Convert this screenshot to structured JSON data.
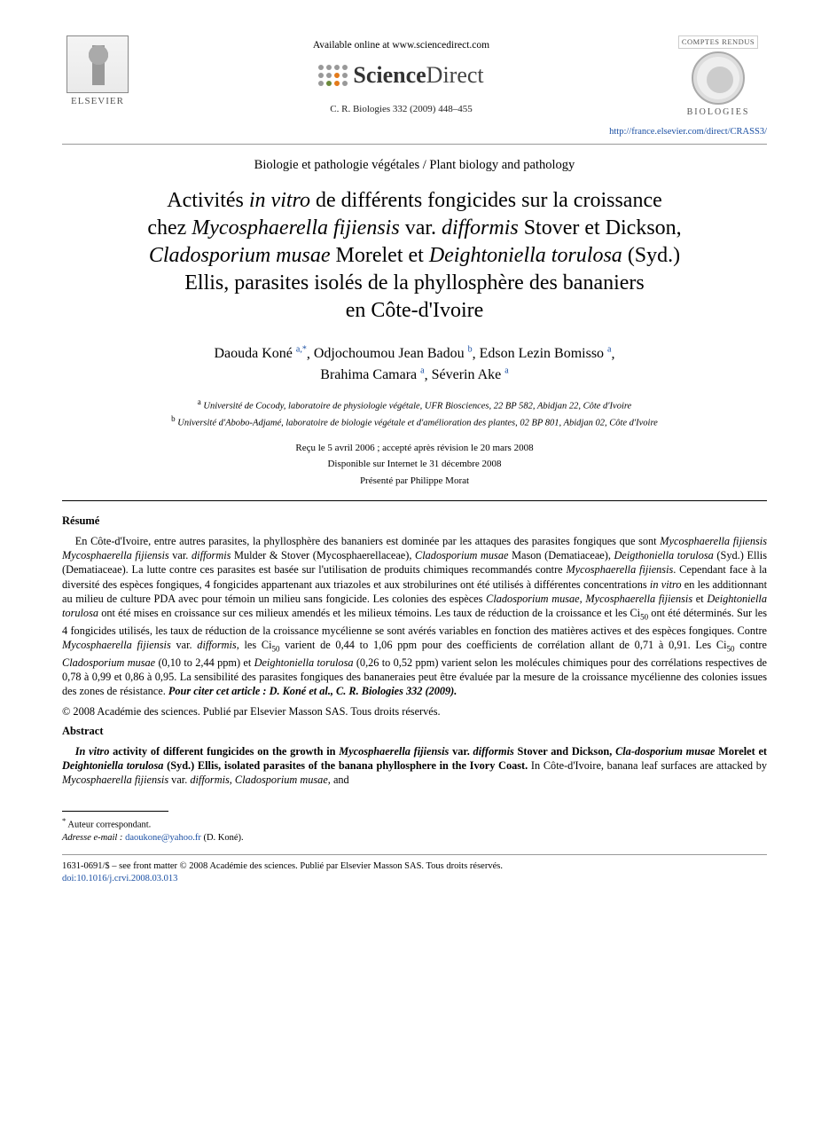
{
  "colors": {
    "link": "#1a4fa3",
    "text": "#000000",
    "background": "#ffffff",
    "rule": "#999999",
    "logo_orange": "#e37b1b",
    "logo_green": "#6a8a3a"
  },
  "typography": {
    "body_family": "Times New Roman",
    "title_size_pt": 18,
    "author_size_pt": 12,
    "body_size_pt": 9.5
  },
  "header": {
    "elsevier_label": "ELSEVIER",
    "available_line": "Available online at www.sciencedirect.com",
    "sd_brand_bold": "Science",
    "sd_brand_rest": "Direct",
    "citation_line": "C. R. Biologies 332 (2009) 448–455",
    "journal_top": "COMPTES RENDUS",
    "journal_bottom": "BIOLOGIES",
    "journal_url": "http://france.elsevier.com/direct/CRASS3/"
  },
  "section_name": "Biologie et pathologie végétales / Plant biology and pathology",
  "title": {
    "l1_a": "Activités ",
    "l1_b_ital": "in vitro",
    "l1_c": " de différents fongicides sur la croissance",
    "l2_a": "chez ",
    "l2_b_ital": "Mycosphaerella fijiensis",
    "l2_c": " var. ",
    "l2_d_ital": "difformis",
    "l2_e": " Stover et Dickson,",
    "l3_a_ital": "Cladosporium musae",
    "l3_b": " Morelet et ",
    "l3_c_ital": "Deightoniella torulosa",
    "l3_d": " (Syd.)",
    "l4": "Ellis, parasites isolés de la phyllosphère des bananiers",
    "l5": "en Côte-d'Ivoire"
  },
  "authors": [
    {
      "name": "Daouda Koné",
      "aff": "a,",
      "star": "*"
    },
    {
      "name": "Odjochoumou Jean Badou",
      "aff": "b",
      "star": ""
    },
    {
      "name": "Edson Lezin Bomisso",
      "aff": "a",
      "star": ""
    },
    {
      "name": "Brahima Camara",
      "aff": "a",
      "star": ""
    },
    {
      "name": "Séverin Ake",
      "aff": "a",
      "star": ""
    }
  ],
  "affiliations": {
    "a": "Université de Cocody, laboratoire de physiologie végétale, UFR Biosciences, 22 BP 582, Abidjan 22, Côte d'Ivoire",
    "b": "Université d'Abobo-Adjamé, laboratoire de biologie végétale et d'amélioration des plantes, 02 BP 801, Abidjan 02, Côte d'Ivoire"
  },
  "dates": {
    "received": "Reçu le 5 avril 2006 ; accepté après révision le 20 mars 2008",
    "online": "Disponible sur Internet le 31 décembre 2008",
    "presented": "Présenté par Philippe Morat"
  },
  "resume": {
    "heading": "Résumé",
    "body_pre": "En Côte-d'Ivoire, entre autres parasites, la phyllosphère des bananiers est dominée par les attaques des parasites fongiques que sont ",
    "sp1": "Mycosphaerella fijiensis Mycosphaerella fijiensis",
    "t1": " var. ",
    "sp1b": "difformis",
    "t1b": " Mulder & Stover (Mycosphaerellaceae), ",
    "sp2": "Cladosporium musae",
    "t2": " Mason (Dematiaceae), ",
    "sp3": "Deigthoniella torulosa",
    "t3": " (Syd.) Ellis (Dematiaceae). La lutte contre ces parasites est basée sur l'utilisation de produits chimiques recommandés contre ",
    "sp4": "Mycosphaerella fijiensis",
    "t4": ". Cependant face à la diversité des espèces fongiques, 4 fongicides appartenant aux triazoles et aux strobilurines ont été utilisés à différentes concentrations ",
    "sp5": "in vitro",
    "t5": " en les additionnant au milieu de culture PDA avec pour témoin un milieu sans fongicide. Les colonies des espèces ",
    "sp6": "Cladosporium musae, Mycosphaerella fijiensis",
    "t6": " et ",
    "sp7": "Deightoniella torulosa",
    "t7": " ont été mises en croissance sur ces milieux amendés et les milieux témoins. Les taux de réduction de la croissance et les Ci",
    "sub1": "50",
    "t8": " ont été déterminés. Sur les 4 fongicides utilisés, les taux de réduction de la croissance mycélienne se sont avérés variables en fonction des matières actives et des espèces fongiques. Contre ",
    "sp8": "Mycosphaerella fijiensis",
    "t8b": " var. ",
    "sp8b": "difformis",
    "t9": ", les Ci",
    "sub2": "50",
    "t10": " varient de 0,44 to 1,06 ppm pour des coefficients de corrélation allant de 0,71 à 0,91. Les Ci",
    "sub3": "50",
    "t11": " contre ",
    "sp9": "Cladosporium musae",
    "t12": " (0,10 to 2,44 ppm) et ",
    "sp10": "Deightoniella torulosa",
    "t13": " (0,26 to 0,52 ppm) varient selon les molécules chimiques pour des corrélations respectives de 0,78 à 0,99 et 0,86 à 0,95. La sensibilité des parasites fongiques des bananeraies peut être évaluée par la mesure de la croissance mycélienne des colonies issues des zones de résistance. ",
    "cite_bold": "Pour citer cet article : D. Koné et al., C. R. Biologies 332 (2009).",
    "rights": "© 2008 Académie des sciences. Publié par Elsevier Masson SAS. Tous droits réservés."
  },
  "abstract": {
    "heading": "Abstract",
    "lead_bold_a": "In vitro",
    "lead_bold_b": " activity of different fungicides on the growth in ",
    "lead_sp1": "Mycosphaerella fijiensis",
    "lead_b2": " var. ",
    "lead_sp1b": "difformis",
    "lead_b3": " Stover and Dickson, ",
    "lead_sp2": "Cla-dosporium musae",
    "lead_b4": " Morelet et ",
    "lead_sp3": "Deightoniella torulosa",
    "lead_b5": " (Syd.) Ellis, isolated parasites of the banana phyllosphere in the Ivory Coast.",
    "body_a": " In Côte-d'Ivoire, banana leaf surfaces are attacked by ",
    "body_sp1": "Mycosphaerella fijiensis",
    "body_b": " var. ",
    "body_sp1b": "difformis, Cladosporium musae",
    "body_c": ", and"
  },
  "footnotes": {
    "star": "*",
    "corresponding": "Auteur correspondant.",
    "email_label": "Adresse e-mail :",
    "email": "daoukone@yahoo.fr",
    "email_paren": " (D. Koné)."
  },
  "copyright": {
    "issn": "1631-0691/$ – see front matter © 2008 Académie des sciences. Publié par Elsevier Masson SAS. Tous droits réservés.",
    "doi_label": "doi:",
    "doi": "10.1016/j.crvi.2008.03.013"
  }
}
